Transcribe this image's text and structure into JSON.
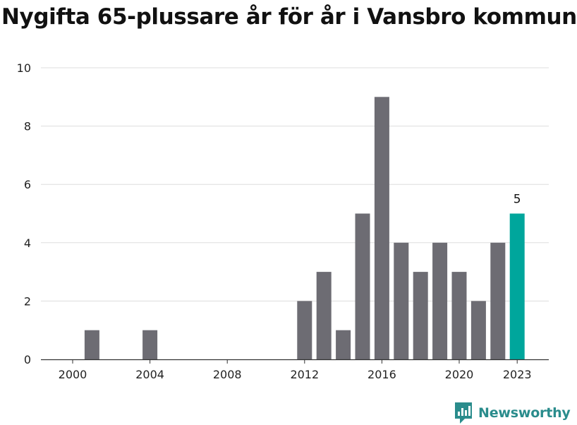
{
  "chart_data": {
    "type": "bar",
    "title": "Nygifta 65-plussare år för år i Vansbro kommun",
    "x": [
      2000,
      2001,
      2002,
      2003,
      2004,
      2005,
      2006,
      2007,
      2008,
      2009,
      2010,
      2011,
      2012,
      2013,
      2014,
      2015,
      2016,
      2017,
      2018,
      2019,
      2020,
      2021,
      2022,
      2023
    ],
    "values": [
      0,
      1,
      0,
      0,
      1,
      0,
      0,
      0,
      0,
      0,
      0,
      0,
      2,
      3,
      1,
      5,
      9,
      4,
      3,
      4,
      3,
      2,
      4,
      5
    ],
    "x_ticks": [
      "2000",
      "2004",
      "2008",
      "2012",
      "2016",
      "2020",
      "2023"
    ],
    "y_ticks": [
      "0",
      "2",
      "4",
      "6",
      "8",
      "10"
    ],
    "ylim": [
      0,
      10
    ],
    "highlight": {
      "x": 2023,
      "label": "5"
    },
    "colors": {
      "bar": "#6d6c73",
      "highlight": "#00a69c",
      "grid": "#dddddd"
    },
    "grid": true
  },
  "brand": {
    "name": "Newsworthy",
    "icon": "newsworthy-logo-icon",
    "color": "#2a8c8c"
  }
}
